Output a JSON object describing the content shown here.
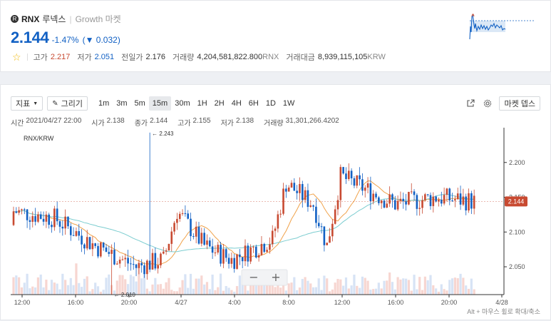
{
  "coin": {
    "logo": "R",
    "symbol": "RNX",
    "korean_name": "루넥스",
    "separator": "|",
    "market": "Growth 마켓",
    "price": "2.144",
    "change_rate": "-1.47%",
    "change_amount": "(▼ 0.032)"
  },
  "stats": {
    "star_icon": "star-outline-icon",
    "high_label": "고가",
    "high_value": "2.217",
    "low_label": "저가",
    "low_value": "2.051",
    "prev_label": "전일가",
    "prev_value": "2.176",
    "volume_label": "거래량",
    "volume_value": "4,204,581,822.800",
    "volume_unit": "RNX",
    "amount_label": "거래대금",
    "amount_value": "8,939,115,105",
    "amount_unit": "KRW"
  },
  "toolbar": {
    "indicator_label": "지표",
    "draw_label": "그리기",
    "timeframes": [
      "1m",
      "3m",
      "5m",
      "15m",
      "30m",
      "1H",
      "2H",
      "4H",
      "6H",
      "1D",
      "1W"
    ],
    "active_timeframe": "15m",
    "market_depth_label": "마켓 뎁스"
  },
  "ohlc": {
    "time_label": "시간",
    "time_value": "2021/04/27 22:00",
    "open_label": "시가",
    "open_value": "2.138",
    "close_label": "종가",
    "close_value": "2.144",
    "high_label": "고가",
    "high_value": "2.155",
    "low_label": "저가",
    "low_value": "2.138",
    "volume_label": "거래량",
    "volume_value": "31,301,266.4202"
  },
  "chart": {
    "pair_label": "RNX/KRW",
    "y_ticks": [
      "2.200",
      "2.150",
      "2.100",
      "2.050"
    ],
    "current_price_tag": "2.144",
    "max_label": "← 2.243",
    "min_label": "← 2.010",
    "x_ticks": [
      "12:00",
      "16:00",
      "20:00",
      "4/27",
      "4:00",
      "8:00",
      "12:00",
      "16:00",
      "20:00",
      "4/28"
    ],
    "zoom_out": "−",
    "zoom_in": "+",
    "hint": "Alt + 마우스 휠로 확대/축소"
  },
  "colors": {
    "up": "#c84a31",
    "down": "#1261c4",
    "accent": "#1261c4"
  }
}
